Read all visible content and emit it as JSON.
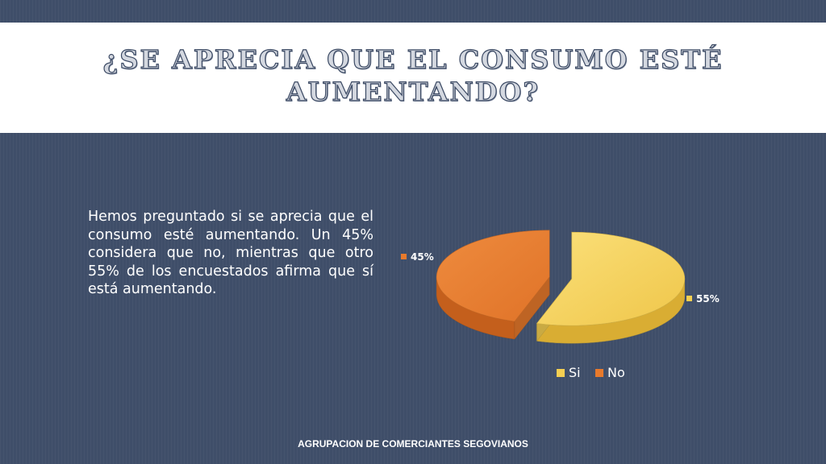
{
  "slide": {
    "title": "¿Se aprecia que el consumo esté aumentando?",
    "body": "Hemos preguntado si se aprecia que el consumo esté aumentando. Un 45% considera que no, mientras que otro 55% de los encuestados afirma que sí  está aumentando.",
    "footer": "AGRUPACION DE COMERCIANTES SEGOVIANOS"
  },
  "chart_data": {
    "type": "pie",
    "title": "",
    "categories": [
      "Si",
      "No"
    ],
    "values": [
      55,
      45
    ],
    "data_labels": [
      "55%",
      "45%"
    ],
    "colors": [
      "#f5cf52",
      "#e87a2c"
    ],
    "exploded": true,
    "three_d": true,
    "legend_position": "bottom"
  }
}
